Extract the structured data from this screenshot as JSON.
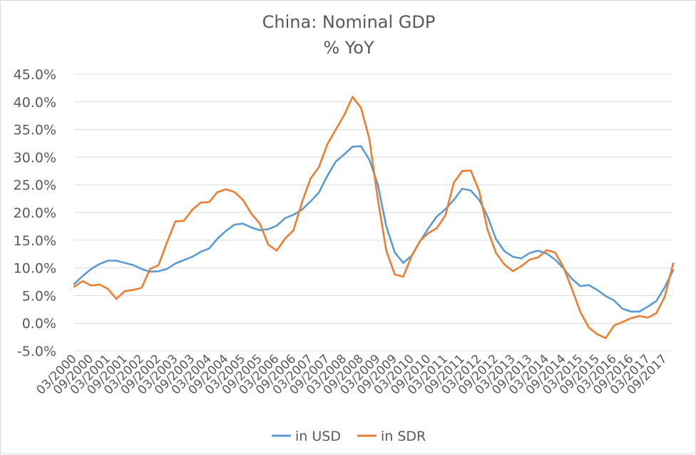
{
  "chart_data": {
    "type": "line",
    "title": "China: Nominal GDP",
    "subtitle": "% YoY",
    "xlabel": "",
    "ylabel": "",
    "ylim": [
      -5,
      45
    ],
    "ytick_labels": [
      "-5.0%",
      "0.0%",
      "5.0%",
      "10.0%",
      "15.0%",
      "20.0%",
      "25.0%",
      "30.0%",
      "35.0%",
      "40.0%",
      "45.0%"
    ],
    "xtick_labels": [
      "03/2000",
      "09/2000",
      "03/2001",
      "09/2001",
      "03/2002",
      "09/2002",
      "03/2003",
      "09/2003",
      "03/2004",
      "09/2004",
      "03/2005",
      "09/2005",
      "03/2006",
      "09/2006",
      "03/2007",
      "09/2007",
      "03/2008",
      "09/2008",
      "03/2009",
      "09/2009",
      "03/2010",
      "09/2010",
      "03/2011",
      "09/2011",
      "03/2012",
      "09/2012",
      "03/2013",
      "09/2013",
      "03/2014",
      "09/2014",
      "03/2015",
      "09/2015",
      "03/2016",
      "09/2016",
      "03/2017",
      "09/2017"
    ],
    "grid": true,
    "legend_position": "bottom",
    "series": [
      {
        "name": "in USD",
        "color": "#5b9bd5",
        "values": [
          7.1,
          8.5,
          9.8,
          10.7,
          11.3,
          11.3,
          10.9,
          10.5,
          9.8,
          9.3,
          9.4,
          9.8,
          10.8,
          11.4,
          12.0,
          12.9,
          13.5,
          15.3,
          16.7,
          17.8,
          18.0,
          17.3,
          16.8,
          17.0,
          17.6,
          19.0,
          19.6,
          20.5,
          22.0,
          23.6,
          26.6,
          29.2,
          30.5,
          31.9,
          32.0,
          29.5,
          25.0,
          17.5,
          12.8,
          10.9,
          12.2,
          14.8,
          17.2,
          19.3,
          20.6,
          22.3,
          24.3,
          24.0,
          22.3,
          19.3,
          15.2,
          13.0,
          12.0,
          11.7,
          12.7,
          13.1,
          12.6,
          11.5,
          9.9,
          8.0,
          6.7,
          6.9,
          6.0,
          4.9,
          4.1,
          2.6,
          2.1,
          2.1,
          3.0,
          4.0,
          6.5,
          9.6
        ]
      },
      {
        "name": "in SDR",
        "color": "#ed7d31",
        "values": [
          6.6,
          7.6,
          6.8,
          7.0,
          6.2,
          4.4,
          5.8,
          6.0,
          6.4,
          9.8,
          10.5,
          14.6,
          18.4,
          18.5,
          20.5,
          21.8,
          21.9,
          23.7,
          24.2,
          23.7,
          22.3,
          19.8,
          18.0,
          14.2,
          13.1,
          15.3,
          16.8,
          21.8,
          26.1,
          28.2,
          32.3,
          35.0,
          37.6,
          40.9,
          38.9,
          33.2,
          22.3,
          13.1,
          8.8,
          8.4,
          12.1,
          14.9,
          16.3,
          17.2,
          19.5,
          25.4,
          27.5,
          27.6,
          23.9,
          16.9,
          12.7,
          10.6,
          9.4,
          10.3,
          11.5,
          11.9,
          13.2,
          12.8,
          10.1,
          6.2,
          2.0,
          -0.8,
          -2.0,
          -2.7,
          -0.4,
          0.2,
          0.9,
          1.3,
          1.0,
          1.8,
          4.8,
          10.8
        ]
      }
    ]
  }
}
